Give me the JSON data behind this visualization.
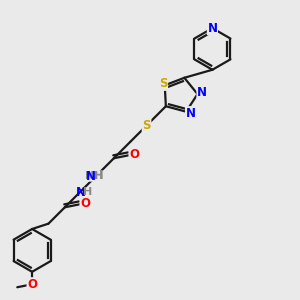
{
  "bg_color": "#eaeaea",
  "bond_color": "#1a1a1a",
  "colors": {
    "N": "#0000ff",
    "O": "#ff0000",
    "S": "#ccaa00",
    "C": "#1a1a1a",
    "H": "#888888"
  }
}
